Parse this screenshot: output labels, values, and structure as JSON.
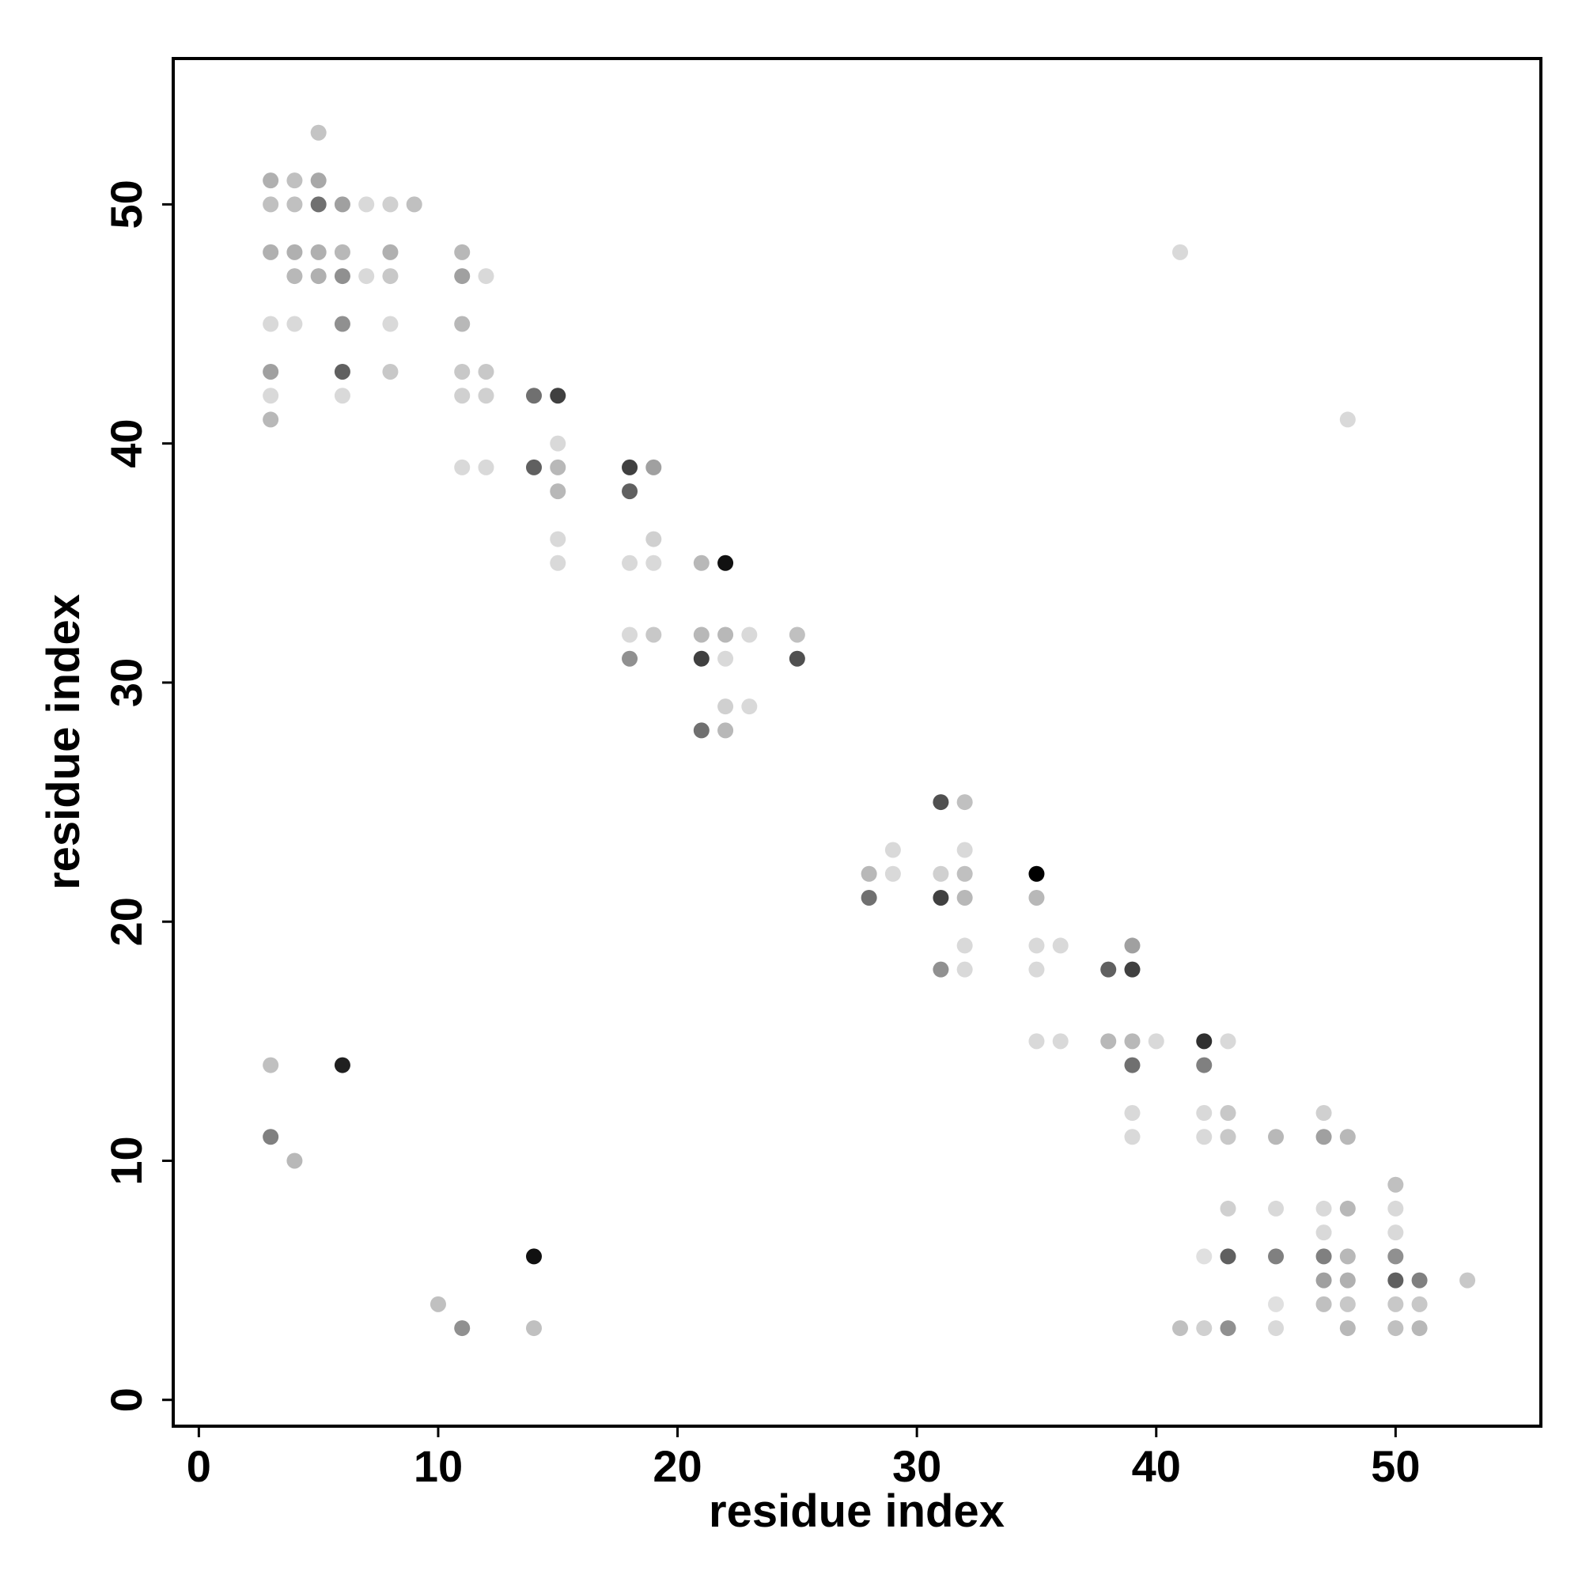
{
  "chart_data": {
    "type": "scatter",
    "x_label": "residue index",
    "y_label": "residue index",
    "xlim": [
      -1.07,
      56.07
    ],
    "ylim": [
      -1.1,
      56.1
    ],
    "xticks": [
      0,
      10,
      20,
      30,
      40,
      50
    ],
    "yticks": [
      0,
      10,
      20,
      30,
      40,
      50
    ],
    "grid": false,
    "x": [
      5,
      3,
      4,
      5,
      3,
      4,
      5,
      6,
      7,
      8,
      9,
      3,
      4,
      5,
      6,
      8,
      11,
      41,
      4,
      5,
      6,
      7,
      8,
      11,
      12,
      3,
      4,
      6,
      8,
      11,
      3,
      6,
      8,
      11,
      12,
      3,
      6,
      11,
      12,
      14,
      15,
      3,
      48,
      15,
      11,
      12,
      14,
      15,
      18,
      19,
      15,
      18,
      15,
      19,
      15,
      18,
      19,
      21,
      22,
      18,
      19,
      21,
      22,
      23,
      25,
      18,
      21,
      22,
      25,
      22,
      23,
      21,
      22,
      31,
      32,
      29,
      32,
      28,
      29,
      31,
      32,
      35,
      28,
      31,
      32,
      35,
      32,
      35,
      36,
      39,
      31,
      32,
      35,
      38,
      39,
      35,
      36,
      38,
      39,
      40,
      42,
      43,
      3,
      6,
      39,
      42,
      39,
      42,
      43,
      47,
      3,
      39,
      42,
      43,
      45,
      47,
      48,
      4,
      50,
      43,
      45,
      47,
      48,
      50,
      47,
      50,
      14,
      42,
      43,
      45,
      47,
      48,
      50,
      47,
      48,
      50,
      51,
      53,
      10,
      45,
      47,
      48,
      50,
      51,
      11,
      14,
      41,
      42,
      43,
      45,
      48,
      50,
      51
    ],
    "y": [
      53,
      51,
      51,
      51,
      50,
      50,
      50,
      50,
      50,
      50,
      50,
      48,
      48,
      48,
      48,
      48,
      48,
      48,
      47,
      47,
      47,
      47,
      47,
      47,
      47,
      45,
      45,
      45,
      45,
      45,
      43,
      43,
      43,
      43,
      43,
      42,
      42,
      42,
      42,
      42,
      42,
      41,
      41,
      40,
      39,
      39,
      39,
      39,
      39,
      39,
      38,
      38,
      36,
      36,
      35,
      35,
      35,
      35,
      35,
      32,
      32,
      32,
      32,
      32,
      32,
      31,
      31,
      31,
      31,
      29,
      29,
      28,
      28,
      25,
      25,
      23,
      23,
      22,
      22,
      22,
      22,
      22,
      21,
      21,
      21,
      21,
      19,
      19,
      19,
      19,
      18,
      18,
      18,
      18,
      18,
      15,
      15,
      15,
      15,
      15,
      15,
      15,
      14,
      14,
      14,
      14,
      12,
      12,
      12,
      12,
      11,
      11,
      11,
      11,
      11,
      11,
      11,
      10,
      9,
      8,
      8,
      8,
      8,
      8,
      7,
      7,
      6,
      6,
      6,
      6,
      6,
      6,
      6,
      5,
      5,
      5,
      5,
      5,
      4,
      4,
      4,
      4,
      4,
      4,
      3,
      3,
      3,
      3,
      3,
      3,
      3,
      3,
      3
    ],
    "colors": [
      "#c4c4c4",
      "#b0b0b0",
      "#c0c0c0",
      "#a8a8a8",
      "#c0c0c0",
      "#c0c0c0",
      "#707070",
      "#a0a0a0",
      "#d9d9d9",
      "#d0d0d0",
      "#c0c0c0",
      "#b0b0b0",
      "#b0b0b0",
      "#b0b0b0",
      "#b8b8b8",
      "#b0b0b0",
      "#b8b8b8",
      "#d9d9d9",
      "#b8b8b8",
      "#b0b0b0",
      "#909090",
      "#d9d9d9",
      "#c8c8c8",
      "#a0a0a0",
      "#d9d9d9",
      "#d9d9d9",
      "#d9d9d9",
      "#909090",
      "#d9d9d9",
      "#b8b8b8",
      "#a0a0a0",
      "#606060",
      "#c8c8c8",
      "#c8c8c8",
      "#c8c8c8",
      "#d9d9d9",
      "#d9d9d9",
      "#d0d0d0",
      "#d0d0d0",
      "#707070",
      "#404040",
      "#b8b8b8",
      "#d9d9d9",
      "#d9d9d9",
      "#d9d9d9",
      "#d9d9d9",
      "#606060",
      "#b8b8b8",
      "#404040",
      "#a0a0a0",
      "#b8b8b8",
      "#606060",
      "#d9d9d9",
      "#d0d0d0",
      "#d9d9d9",
      "#d9d9d9",
      "#d9d9d9",
      "#b8b8b8",
      "#111111",
      "#d9d9d9",
      "#c8c8c8",
      "#b8b8b8",
      "#b8b8b8",
      "#d9d9d9",
      "#c0c0c0",
      "#909090",
      "#404040",
      "#d9d9d9",
      "#505050",
      "#d0d0d0",
      "#d9d9d9",
      "#707070",
      "#b8b8b8",
      "#505050",
      "#c0c0c0",
      "#d9d9d9",
      "#d9d9d9",
      "#b8b8b8",
      "#d9d9d9",
      "#d0d0d0",
      "#c0c0c0",
      "#000000",
      "#707070",
      "#404040",
      "#b8b8b8",
      "#b8b8b8",
      "#d9d9d9",
      "#d9d9d9",
      "#d9d9d9",
      "#a0a0a0",
      "#909090",
      "#d9d9d9",
      "#d9d9d9",
      "#606060",
      "#404040",
      "#d9d9d9",
      "#d9d9d9",
      "#b8b8b8",
      "#b8b8b8",
      "#d9d9d9",
      "#303030",
      "#d9d9d9",
      "#c0c0c0",
      "#202020",
      "#707070",
      "#808080",
      "#d9d9d9",
      "#d9d9d9",
      "#c8c8c8",
      "#d0d0d0",
      "#808080",
      "#d9d9d9",
      "#d9d9d9",
      "#c8c8c8",
      "#b8b8b8",
      "#a0a0a0",
      "#b8b8b8",
      "#b8b8b8",
      "#c0c0c0",
      "#d0d0d0",
      "#d9d9d9",
      "#d9d9d9",
      "#b8b8b8",
      "#d9d9d9",
      "#d9d9d9",
      "#d9d9d9",
      "#111111",
      "#e0e0e0",
      "#606060",
      "#808080",
      "#808080",
      "#b8b8b8",
      "#909090",
      "#a0a0a0",
      "#b0b0b0",
      "#606060",
      "#808080",
      "#c8c8c8",
      "#c0c0c0",
      "#e0e0e0",
      "#c0c0c0",
      "#c8c8c8",
      "#c8c8c8",
      "#c8c8c8",
      "#909090",
      "#c0c0c0",
      "#c0c0c0",
      "#d0d0d0",
      "#909090",
      "#d9d9d9",
      "#b8b8b8",
      "#c0c0c0",
      "#b8b8b8"
    ]
  }
}
